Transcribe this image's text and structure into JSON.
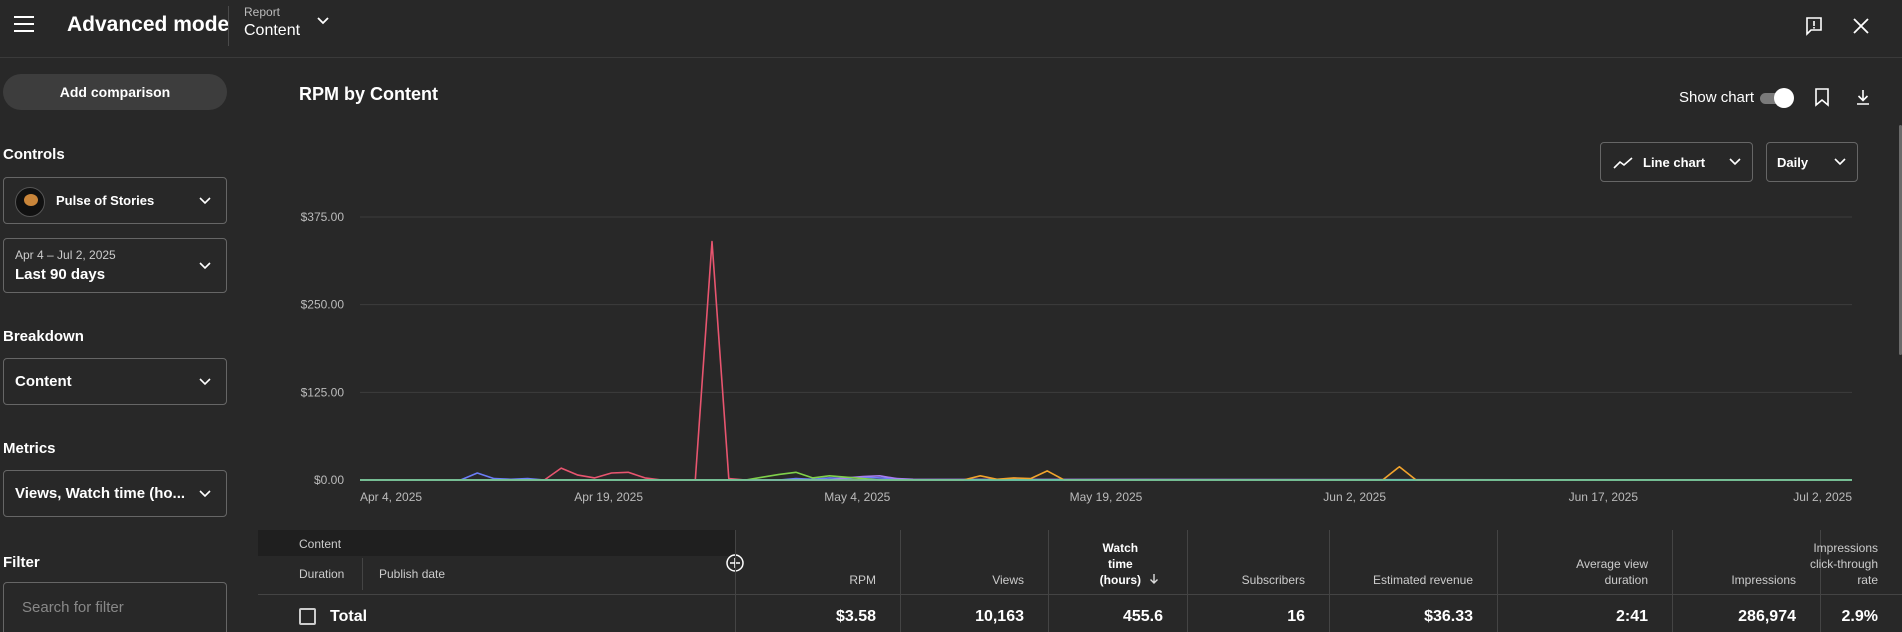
{
  "header": {
    "title": "Advanced mode",
    "report_label": "Report",
    "report_value": "Content"
  },
  "sidebar": {
    "add_comparison": "Add comparison",
    "controls_title": "Controls",
    "channel": "Pulse of Stories",
    "date_range": "Apr 4 – Jul 2, 2025",
    "date_preset": "Last 90 days",
    "breakdown_title": "Breakdown",
    "breakdown_value": "Content",
    "metrics_title": "Metrics",
    "metrics_value": "Views, Watch time (ho...",
    "filter_title": "Filter",
    "filter_placeholder": "Search for filter"
  },
  "main": {
    "chart_title": "RPM by Content",
    "show_chart_label": "Show chart",
    "show_chart_on": true,
    "chart_type_label": "Line chart",
    "granularity_label": "Daily"
  },
  "chart_data": {
    "type": "line",
    "x_ticks": [
      "Apr 4, 2025",
      "Apr 19, 2025",
      "May 4, 2025",
      "May 19, 2025",
      "Jun 2, 2025",
      "Jun 17, 2025",
      "Jul 2, 2025"
    ],
    "y_ticks": [
      "$375.00",
      "$250.00",
      "$125.00",
      "$0.00"
    ],
    "ylim": [
      0,
      375
    ],
    "days": 89,
    "series": [
      {
        "color": "#e8556f",
        "points": [
          [
            0,
            0
          ],
          [
            11,
            0
          ],
          [
            12,
            17
          ],
          [
            13,
            7
          ],
          [
            14,
            3
          ],
          [
            15,
            10
          ],
          [
            16,
            11
          ],
          [
            17,
            3
          ],
          [
            18,
            0
          ],
          [
            19,
            0
          ],
          [
            20,
            0
          ],
          [
            21,
            340
          ],
          [
            22,
            2
          ],
          [
            23,
            0
          ],
          [
            89,
            0
          ]
        ]
      },
      {
        "color": "#6b7df7",
        "points": [
          [
            0,
            0
          ],
          [
            6,
            0
          ],
          [
            7,
            10
          ],
          [
            8,
            2
          ],
          [
            9,
            1
          ],
          [
            10,
            2
          ],
          [
            11,
            0
          ],
          [
            25,
            0
          ],
          [
            26,
            2
          ],
          [
            27,
            1
          ],
          [
            28,
            3
          ],
          [
            29,
            2
          ],
          [
            30,
            4
          ],
          [
            31,
            3
          ],
          [
            32,
            2
          ],
          [
            33,
            0
          ],
          [
            89,
            0
          ]
        ]
      },
      {
        "color": "#a77df0",
        "points": [
          [
            0,
            0
          ],
          [
            28,
            0
          ],
          [
            29,
            3
          ],
          [
            30,
            5
          ],
          [
            31,
            6
          ],
          [
            32,
            2
          ],
          [
            33,
            1
          ],
          [
            89,
            0
          ]
        ]
      },
      {
        "color": "#7fd14a",
        "points": [
          [
            0,
            0
          ],
          [
            23,
            0
          ],
          [
            24,
            4
          ],
          [
            25,
            8
          ],
          [
            26,
            11
          ],
          [
            27,
            3
          ],
          [
            28,
            6
          ],
          [
            29,
            4
          ],
          [
            30,
            2
          ],
          [
            31,
            0
          ],
          [
            89,
            0
          ]
        ]
      },
      {
        "color": "#f1a32c",
        "points": [
          [
            0,
            0
          ],
          [
            36,
            0
          ],
          [
            37,
            6
          ],
          [
            38,
            1
          ],
          [
            39,
            3
          ],
          [
            40,
            2
          ],
          [
            41,
            13
          ],
          [
            42,
            0
          ],
          [
            61,
            0
          ],
          [
            62,
            19
          ],
          [
            63,
            0
          ],
          [
            89,
            0
          ]
        ]
      },
      {
        "color": "#5ec8a8",
        "points": [
          [
            0,
            0
          ],
          [
            89,
            0
          ]
        ]
      }
    ]
  },
  "table": {
    "col_content": "Content",
    "col_duration": "Duration",
    "col_publish": "Publish date",
    "columns": [
      {
        "label": "RPM",
        "total": "$3.58"
      },
      {
        "label": "Views",
        "total": "10,163"
      },
      {
        "label": "Watch\ntime\n(hours)",
        "total": "455.6",
        "sorted": true
      },
      {
        "label": "Subscribers",
        "total": "16"
      },
      {
        "label": "Estimated revenue",
        "total": "$36.33"
      },
      {
        "label": "Average view\nduration",
        "total": "2:41"
      },
      {
        "label": "Impressions",
        "total": "286,974"
      },
      {
        "label": "Impressions\nclick-through\nrate",
        "total": "2.9%"
      }
    ],
    "total_label": "Total"
  }
}
